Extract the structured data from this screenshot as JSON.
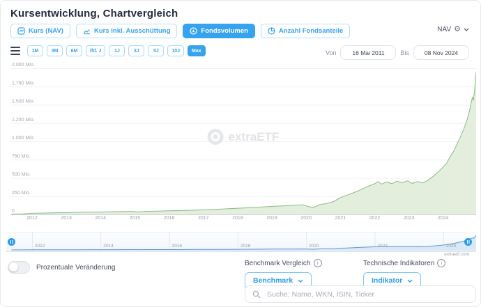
{
  "header": {
    "title": "Kursentwicklung, Chartvergleich"
  },
  "nav_selector": {
    "label": "NAV"
  },
  "view_tabs": [
    {
      "label": "Kurs (NAV)",
      "selected": false
    },
    {
      "label": "Kurs inkl. Ausschüttung",
      "selected": false
    },
    {
      "label": "Fondsvolumen",
      "selected": true
    },
    {
      "label": "Anzahl Fondsanteile",
      "selected": false
    }
  ],
  "range_buttons": [
    {
      "label": "1M",
      "selected": false
    },
    {
      "label": "3M",
      "selected": false
    },
    {
      "label": "6M",
      "selected": false
    },
    {
      "label": "lfd. J",
      "selected": false
    },
    {
      "label": "1J",
      "selected": false
    },
    {
      "label": "3J",
      "selected": false
    },
    {
      "label": "5J",
      "selected": false
    },
    {
      "label": "10J",
      "selected": false
    },
    {
      "label": "Max",
      "selected": true
    }
  ],
  "date_range": {
    "von_label": "Von",
    "von_value": "16 Mai 2011",
    "bis_label": "Bis",
    "bis_value": "08 Nov 2024"
  },
  "watermark": "extraETF",
  "attribution": "extraetf.com",
  "colors": {
    "accent_blue": "#36a3ee",
    "area_fill": "#e4eedd",
    "area_stroke": "#8bbb85",
    "grid_line": "#f1f2f5",
    "axis_line": "#d2d5db",
    "nav_area_fill": "#d8e8f7",
    "nav_line": "#5b9ad6",
    "nav_grid": "#e5e7ec",
    "tick_text": "#a1a6b0"
  },
  "chart_data": {
    "type": "area",
    "title": "Fondsvolumen",
    "ylabel": "Mio. EUR",
    "ylim": [
      0,
      2000
    ],
    "xlim": [
      2011.37,
      2024.96
    ],
    "grid": true,
    "yticks": [
      {
        "value": 2000,
        "label": "2.000 Mio."
      },
      {
        "value": 1750,
        "label": "1.750 Mio."
      },
      {
        "value": 1500,
        "label": "1.500 Mio."
      },
      {
        "value": 1250,
        "label": "1.250 Mio."
      },
      {
        "value": 1000,
        "label": "1.000 Mio."
      },
      {
        "value": 750,
        "label": "750 Mio."
      },
      {
        "value": 500,
        "label": "500 Mio."
      },
      {
        "value": 250,
        "label": "250 Mio."
      },
      {
        "value": 0,
        "label": "0"
      }
    ],
    "xticks": [
      2012,
      2013,
      2014,
      2015,
      2016,
      2017,
      2018,
      2019,
      2020,
      2021,
      2022,
      2023,
      2024
    ],
    "x": [
      2011.4,
      2011.7,
      2012.0,
      2012.5,
      2013.0,
      2013.5,
      2014.0,
      2014.5,
      2014.9,
      2015.1,
      2015.3,
      2015.7,
      2016.0,
      2016.5,
      2017.0,
      2017.5,
      2018.0,
      2018.5,
      2019.0,
      2019.5,
      2019.9,
      2020.2,
      2020.4,
      2020.6,
      2020.8,
      2021.0,
      2021.2,
      2021.4,
      2021.6,
      2021.8,
      2022.0,
      2022.1,
      2022.2,
      2022.35,
      2022.5,
      2022.65,
      2022.8,
      2022.95,
      2023.1,
      2023.25,
      2023.4,
      2023.55,
      2023.7,
      2023.85,
      2024.0,
      2024.1,
      2024.2,
      2024.3,
      2024.4,
      2024.5,
      2024.6,
      2024.7,
      2024.75,
      2024.8,
      2024.85,
      2024.88,
      2024.92,
      2024.96
    ],
    "values": [
      5,
      8,
      15,
      20,
      25,
      30,
      33,
      38,
      42,
      34,
      42,
      46,
      50,
      55,
      62,
      72,
      85,
      95,
      110,
      120,
      130,
      92,
      135,
      150,
      175,
      230,
      265,
      300,
      340,
      385,
      420,
      450,
      415,
      445,
      420,
      455,
      430,
      460,
      425,
      450,
      430,
      465,
      520,
      580,
      650,
      700,
      790,
      860,
      960,
      1060,
      1170,
      1300,
      1390,
      1490,
      1600,
      1560,
      1720,
      1950
    ],
    "navigator": {
      "ticks": [
        2012,
        2014,
        2016,
        2018,
        2020,
        2022,
        2024
      ]
    }
  },
  "bottom": {
    "toggle_label": "Prozentuale Veränderung",
    "benchmark_label": "Benchmark Vergleich",
    "benchmark_button": "Benchmark",
    "indicators_label": "Technische Indikatoren",
    "indicator_button": "Indikator",
    "search_placeholder": "Suche: Name, WKN, ISIN, Ticker"
  }
}
